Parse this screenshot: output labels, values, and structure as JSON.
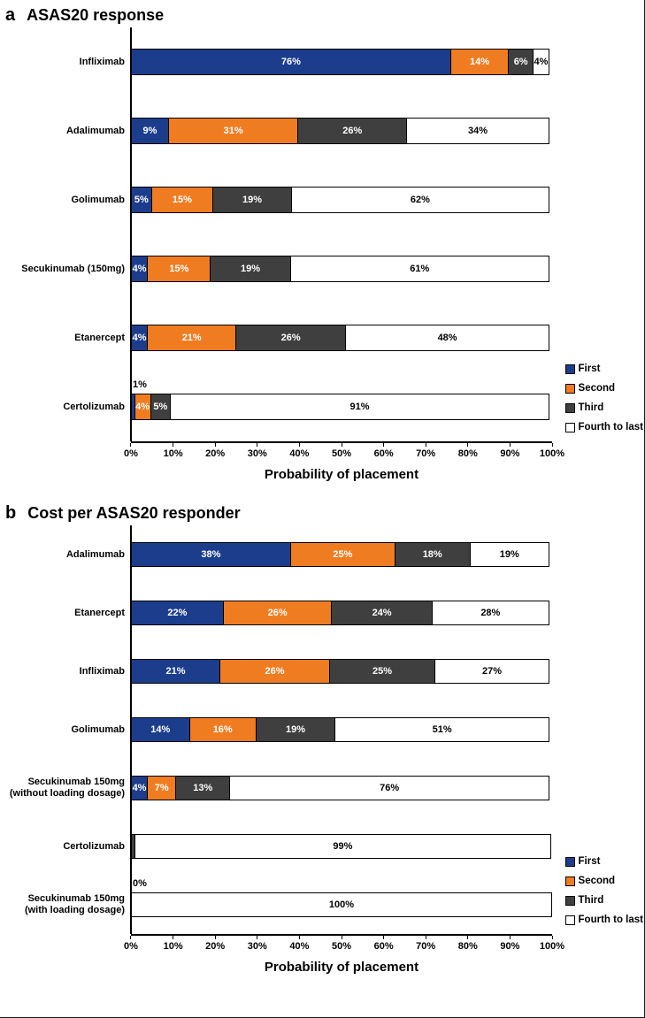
{
  "chart_data": [
    {
      "type": "bar",
      "orientation": "horizontal",
      "stacked": true,
      "panel": "a",
      "title": "ASAS20 response",
      "xlabel": "Probability of placement",
      "xlim": [
        0,
        100
      ],
      "x_ticks": [
        "0%",
        "10%",
        "20%",
        "30%",
        "40%",
        "50%",
        "60%",
        "70%",
        "80%",
        "90%",
        "100%"
      ],
      "grid": false,
      "legend": {
        "position": "right-bottom",
        "entries": [
          "First",
          "Second",
          "Third",
          "Fourth to last"
        ]
      },
      "series_colors": {
        "First": "#1c3d8c",
        "Second": "#f07c22",
        "Third": "#3f3f3f",
        "Fourth to last": "#ffffff"
      },
      "label_colors": {
        "First": "#ffffff",
        "Second": "#ffffff",
        "Third": "#ffffff",
        "Fourth to last": "#000000"
      },
      "categories": [
        "Infliximab",
        "Adalimumab",
        "Golimumab",
        "Secukinumab (150mg)",
        "Etanercept",
        "Certolizumab"
      ],
      "series": [
        {
          "name": "First",
          "values": [
            76,
            9,
            5,
            4,
            4,
            1
          ]
        },
        {
          "name": "Second",
          "values": [
            14,
            31,
            15,
            15,
            21,
            4
          ]
        },
        {
          "name": "Third",
          "values": [
            6,
            26,
            19,
            19,
            26,
            5
          ]
        },
        {
          "name": "Fourth to last",
          "values": [
            4,
            34,
            62,
            61,
            48,
            91
          ]
        }
      ],
      "annotations": [
        {
          "category": "Certolizumab",
          "series": "First",
          "text": "1%",
          "placement": "above-bar"
        }
      ]
    },
    {
      "type": "bar",
      "orientation": "horizontal",
      "stacked": true,
      "panel": "b",
      "title": "Cost per ASAS20 responder",
      "xlabel": "Probability of placement",
      "xlim": [
        0,
        100
      ],
      "x_ticks": [
        "0%",
        "10%",
        "20%",
        "30%",
        "40%",
        "50%",
        "60%",
        "70%",
        "80%",
        "90%",
        "100%"
      ],
      "grid": false,
      "legend": {
        "position": "right-bottom",
        "entries": [
          "First",
          "Second",
          "Third",
          "Fourth to last"
        ]
      },
      "series_colors": {
        "First": "#1c3d8c",
        "Second": "#f07c22",
        "Third": "#3f3f3f",
        "Fourth to last": "#ffffff"
      },
      "label_colors": {
        "First": "#ffffff",
        "Second": "#ffffff",
        "Third": "#ffffff",
        "Fourth to last": "#000000"
      },
      "categories": [
        "Adalimumab",
        "Etanercept",
        "Infliximab",
        "Golimumab",
        "Secukinumab 150mg\n(without loading dosage)",
        "Certolizumab",
        "Secukinumab 150mg\n(with loading dosage)"
      ],
      "series": [
        {
          "name": "First",
          "values": [
            38,
            22,
            21,
            14,
            4,
            0,
            0
          ]
        },
        {
          "name": "Second",
          "values": [
            25,
            26,
            26,
            16,
            7,
            0,
            0
          ]
        },
        {
          "name": "Third",
          "values": [
            18,
            24,
            25,
            19,
            13,
            1,
            0
          ]
        },
        {
          "name": "Fourth to last",
          "values": [
            19,
            28,
            27,
            51,
            76,
            99,
            100
          ]
        }
      ],
      "annotations": [
        {
          "category": "Secukinumab 150mg\n(with loading dosage)",
          "series": "First",
          "text": "0%",
          "placement": "above-bar"
        }
      ]
    }
  ]
}
